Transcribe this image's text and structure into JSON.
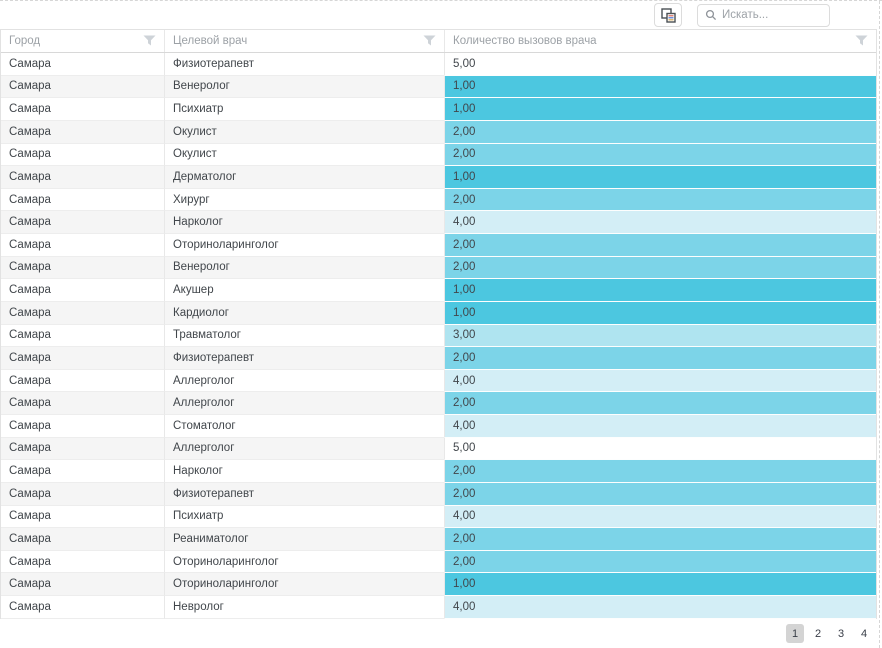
{
  "toolbar": {
    "search": {
      "placeholder": "Искать...",
      "value": ""
    }
  },
  "icons": {
    "toolbar_button": "column-chooser-icon",
    "search": "search-icon",
    "header_filter": "filter-icon"
  },
  "grid": {
    "columns": [
      {
        "label": "Город"
      },
      {
        "label": "Целевой врач"
      },
      {
        "label": "Количество вызовов врача"
      }
    ],
    "value_colors": {
      "1": "#4cc7e0",
      "2": "#7cd4e8",
      "3": "#afe4f0",
      "4": "#d3eef6",
      "5": "#ffffff"
    },
    "rows": [
      {
        "city": "Самара",
        "doctor": "Физиотерапевт",
        "value": "5,00",
        "v": 5
      },
      {
        "city": "Самара",
        "doctor": "Венеролог",
        "value": "1,00",
        "v": 1
      },
      {
        "city": "Самара",
        "doctor": "Психиатр",
        "value": "1,00",
        "v": 1
      },
      {
        "city": "Самара",
        "doctor": "Окулист",
        "value": "2,00",
        "v": 2
      },
      {
        "city": "Самара",
        "doctor": "Окулист",
        "value": "2,00",
        "v": 2
      },
      {
        "city": "Самара",
        "doctor": "Дерматолог",
        "value": "1,00",
        "v": 1
      },
      {
        "city": "Самара",
        "doctor": "Хирург",
        "value": "2,00",
        "v": 2
      },
      {
        "city": "Самара",
        "doctor": "Нарколог",
        "value": "4,00",
        "v": 4
      },
      {
        "city": "Самара",
        "doctor": "Оториноларинголог",
        "value": "2,00",
        "v": 2
      },
      {
        "city": "Самара",
        "doctor": "Венеролог",
        "value": "2,00",
        "v": 2
      },
      {
        "city": "Самара",
        "doctor": "Акушер",
        "value": "1,00",
        "v": 1
      },
      {
        "city": "Самара",
        "doctor": "Кардиолог",
        "value": "1,00",
        "v": 1
      },
      {
        "city": "Самара",
        "doctor": "Травматолог",
        "value": "3,00",
        "v": 3
      },
      {
        "city": "Самара",
        "doctor": "Физиотерапевт",
        "value": "2,00",
        "v": 2
      },
      {
        "city": "Самара",
        "doctor": "Аллерголог",
        "value": "4,00",
        "v": 4
      },
      {
        "city": "Самара",
        "doctor": "Аллерголог",
        "value": "2,00",
        "v": 2
      },
      {
        "city": "Самара",
        "doctor": "Стоматолог",
        "value": "4,00",
        "v": 4
      },
      {
        "city": "Самара",
        "doctor": "Аллерголог",
        "value": "5,00",
        "v": 5
      },
      {
        "city": "Самара",
        "doctor": "Нарколог",
        "value": "2,00",
        "v": 2
      },
      {
        "city": "Самара",
        "doctor": "Физиотерапевт",
        "value": "2,00",
        "v": 2
      },
      {
        "city": "Самара",
        "doctor": "Психиатр",
        "value": "4,00",
        "v": 4
      },
      {
        "city": "Самара",
        "doctor": "Реаниматолог",
        "value": "2,00",
        "v": 2
      },
      {
        "city": "Самара",
        "doctor": "Оториноларинголог",
        "value": "2,00",
        "v": 2
      },
      {
        "city": "Самара",
        "doctor": "Оториноларинголог",
        "value": "1,00",
        "v": 1
      },
      {
        "city": "Самара",
        "doctor": "Невролог",
        "value": "4,00",
        "v": 4
      }
    ]
  },
  "pager": {
    "pages": [
      "1",
      "2",
      "3",
      "4"
    ],
    "current": "1"
  }
}
